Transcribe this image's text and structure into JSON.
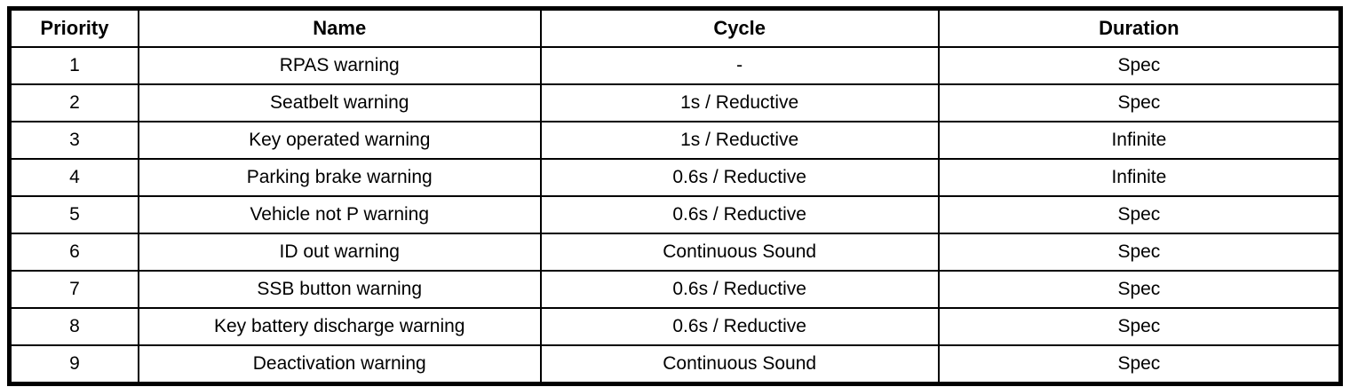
{
  "table": {
    "columns": [
      "Priority",
      "Name",
      "Cycle",
      "Duration"
    ],
    "rows": [
      [
        "1",
        "RPAS warning",
        "-",
        "Spec"
      ],
      [
        "2",
        "Seatbelt warning",
        "1s / Reductive",
        "Spec"
      ],
      [
        "3",
        "Key operated warning",
        "1s / Reductive",
        "Infinite"
      ],
      [
        "4",
        "Parking brake warning",
        "0.6s / Reductive",
        "Infinite"
      ],
      [
        "5",
        "Vehicle not P warning",
        "0.6s / Reductive",
        "Spec"
      ],
      [
        "6",
        "ID out warning",
        "Continuous Sound",
        "Spec"
      ],
      [
        "7",
        "SSB button warning",
        "0.6s / Reductive",
        "Spec"
      ],
      [
        "8",
        "Key battery discharge warning",
        "0.6s / Reductive",
        "Spec"
      ],
      [
        "9",
        "Deactivation warning",
        "Continuous Sound",
        "Spec"
      ]
    ],
    "colors": {
      "border": "#000000",
      "text": "#000000",
      "background": "#ffffff"
    }
  }
}
